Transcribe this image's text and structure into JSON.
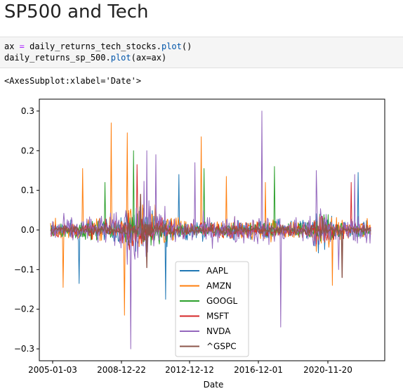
{
  "heading": "SP500 and Tech",
  "code": {
    "line1": {
      "var": "ax",
      "op": " = ",
      "obj": "daily_returns_tech_stocks.",
      "fn": "plot",
      "rest": "()"
    },
    "line2": {
      "obj": "daily_returns_sp_500.",
      "fn": "plot",
      "rest": "(ax=ax)"
    }
  },
  "output": "<AxesSubplot:xlabel='Date'>",
  "chart_data": {
    "type": "line",
    "title": "",
    "xlabel": "Date",
    "ylabel": "",
    "ylim": [
      -0.33,
      0.33
    ],
    "yticks": [
      -0.3,
      -0.2,
      -0.1,
      0.0,
      0.1,
      0.2,
      0.3
    ],
    "ytick_labels": [
      "−0.3",
      "−0.2",
      "−0.1",
      "0.0",
      "0.1",
      "0.2",
      "0.3"
    ],
    "xticks": [
      "2005-01-03",
      "2008-12-22",
      "2012-12-12",
      "2016-12-01",
      "2020-11-20"
    ],
    "grid": false,
    "legend_position": "lower-center",
    "series": [
      {
        "name": "AAPL",
        "color": "#1f77b4"
      },
      {
        "name": "AMZN",
        "color": "#ff7f0e"
      },
      {
        "name": "GOOGL",
        "color": "#2ca02c"
      },
      {
        "name": "MSFT",
        "color": "#d62728"
      },
      {
        "name": "NVDA",
        "color": "#9467bd"
      },
      {
        "name": "^GSPC",
        "color": "#8c564b"
      }
    ]
  }
}
